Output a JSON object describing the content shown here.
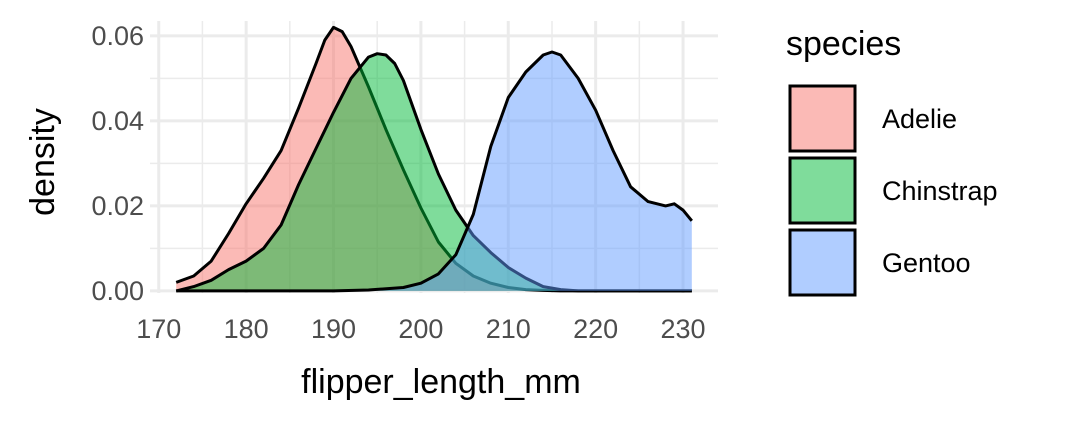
{
  "chart_data": {
    "type": "area",
    "title": "",
    "xlabel": "flipper_length_mm",
    "ylabel": "density",
    "xlim": [
      169,
      234
    ],
    "ylim": [
      -0.0005,
      0.0635
    ],
    "x_ticks": [
      170,
      180,
      190,
      200,
      210,
      220,
      230
    ],
    "x_tick_labels": [
      "170",
      "180",
      "190",
      "200",
      "210",
      "220",
      "230"
    ],
    "y_ticks": [
      0.0,
      0.02,
      0.04,
      0.06
    ],
    "y_tick_labels": [
      "0.00",
      "0.02",
      "0.04",
      "0.06"
    ],
    "grid": true,
    "legend": {
      "title": "species",
      "position": "right"
    },
    "series": [
      {
        "name": "Adelie",
        "color": "#F8766D",
        "x": [
          172,
          174,
          176,
          178,
          180,
          182,
          184,
          186,
          188,
          189,
          190,
          191,
          192,
          194,
          196,
          198,
          200,
          202,
          204,
          206,
          208,
          210,
          212,
          214,
          216,
          218,
          220,
          222,
          224,
          226,
          228,
          230,
          231
        ],
        "y": [
          0.002,
          0.0035,
          0.007,
          0.0135,
          0.0205,
          0.0265,
          0.033,
          0.043,
          0.0535,
          0.059,
          0.062,
          0.061,
          0.0575,
          0.048,
          0.038,
          0.0285,
          0.0195,
          0.0115,
          0.0065,
          0.0035,
          0.0018,
          0.0008,
          0.0003,
          0.0001,
          0.0,
          0.0,
          0.0,
          0.0,
          0.0,
          0.0,
          0.0,
          0.0,
          0.0
        ]
      },
      {
        "name": "Chinstrap",
        "color": "#00BA38",
        "x": [
          172,
          174,
          176,
          178,
          180,
          182,
          184,
          186,
          188,
          190,
          192,
          194,
          195,
          196,
          197,
          198,
          200,
          202,
          204,
          206,
          208,
          210,
          212,
          214,
          216,
          218,
          220,
          222,
          224,
          226,
          228,
          230,
          231
        ],
        "y": [
          0.0,
          0.001,
          0.0025,
          0.005,
          0.007,
          0.01,
          0.0155,
          0.025,
          0.0335,
          0.042,
          0.05,
          0.055,
          0.0558,
          0.0555,
          0.0535,
          0.0495,
          0.038,
          0.0275,
          0.019,
          0.013,
          0.009,
          0.0055,
          0.003,
          0.001,
          0.0003,
          0.0,
          0.0,
          0.0,
          0.0,
          0.0,
          0.0,
          0.0,
          0.0
        ]
      },
      {
        "name": "Gentoo",
        "color": "#619CFF",
        "x": [
          172,
          190,
          194,
          198,
          200,
          202,
          204,
          206,
          208,
          210,
          212,
          214,
          215,
          216,
          218,
          220,
          222,
          224,
          226,
          228,
          229,
          230,
          231
        ],
        "y": [
          0.0,
          0.0,
          0.0002,
          0.0008,
          0.0018,
          0.004,
          0.0085,
          0.018,
          0.034,
          0.0455,
          0.0515,
          0.0555,
          0.0562,
          0.0555,
          0.05,
          0.0425,
          0.033,
          0.0245,
          0.021,
          0.02,
          0.0205,
          0.019,
          0.0165
        ]
      }
    ]
  }
}
